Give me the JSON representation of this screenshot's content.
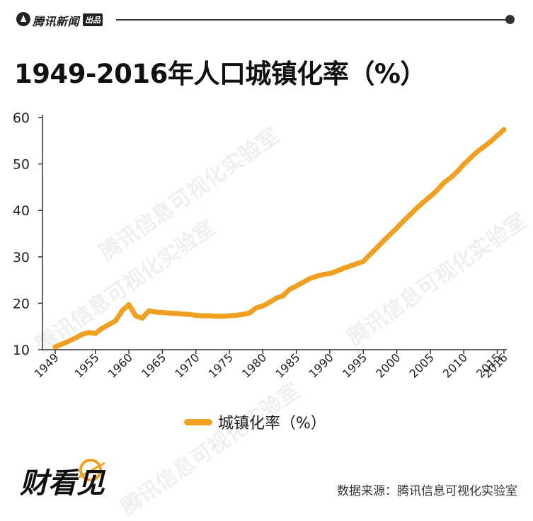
{
  "brand": {
    "name": "腾讯新闻",
    "tag": "出品"
  },
  "title": "1949-2016年人口城镇化率（%）",
  "legend_label": "城镇化率（%）",
  "source": "数据来源：腾讯信息可视化实验室",
  "watermark": "腾讯信息可视化实验室",
  "logo_text": "财看见",
  "colors": {
    "line": "#f0a020",
    "axis": "#333333"
  },
  "chart_data": {
    "type": "line",
    "title": "1949-2016年人口城镇化率（%）",
    "xlabel": "",
    "ylabel": "",
    "xlim": [
      1949,
      2016
    ],
    "ylim": [
      10,
      60
    ],
    "y_ticks": [
      10,
      20,
      30,
      40,
      50,
      60
    ],
    "x_ticks": [
      1949,
      1955,
      1960,
      1965,
      1970,
      1975,
      1980,
      1985,
      1990,
      1995,
      2000,
      2005,
      2010,
      2015,
      2016
    ],
    "grid": false,
    "legend": "bottom-center",
    "series": [
      {
        "name": "城镇化率（%）",
        "color": "#f0a020",
        "x": [
          1949,
          1950,
          1951,
          1952,
          1953,
          1954,
          1955,
          1956,
          1957,
          1958,
          1959,
          1960,
          1961,
          1962,
          1963,
          1964,
          1965,
          1966,
          1967,
          1968,
          1969,
          1970,
          1971,
          1972,
          1973,
          1974,
          1975,
          1976,
          1977,
          1978,
          1979,
          1980,
          1981,
          1982,
          1983,
          1984,
          1985,
          1986,
          1987,
          1988,
          1989,
          1990,
          1991,
          1992,
          1993,
          1994,
          1995,
          1996,
          1997,
          1998,
          1999,
          2000,
          2001,
          2002,
          2003,
          2004,
          2005,
          2006,
          2007,
          2008,
          2009,
          2010,
          2011,
          2012,
          2013,
          2014,
          2015,
          2016
        ],
        "values": [
          10.6,
          11.2,
          11.8,
          12.5,
          13.3,
          13.7,
          13.5,
          14.6,
          15.4,
          16.2,
          18.4,
          19.7,
          17.3,
          16.8,
          18.4,
          18.1,
          18.0,
          17.9,
          17.8,
          17.7,
          17.6,
          17.4,
          17.3,
          17.3,
          17.2,
          17.2,
          17.3,
          17.4,
          17.6,
          17.9,
          19.0,
          19.4,
          20.2,
          21.1,
          21.6,
          23.0,
          23.7,
          24.5,
          25.3,
          25.8,
          26.2,
          26.4,
          26.9,
          27.5,
          28.0,
          28.5,
          29.0,
          30.5,
          31.9,
          33.4,
          34.8,
          36.2,
          37.7,
          39.1,
          40.5,
          41.8,
          43.0,
          44.3,
          45.9,
          47.0,
          48.3,
          49.9,
          51.3,
          52.6,
          53.7,
          54.8,
          56.1,
          57.4
        ]
      }
    ]
  }
}
